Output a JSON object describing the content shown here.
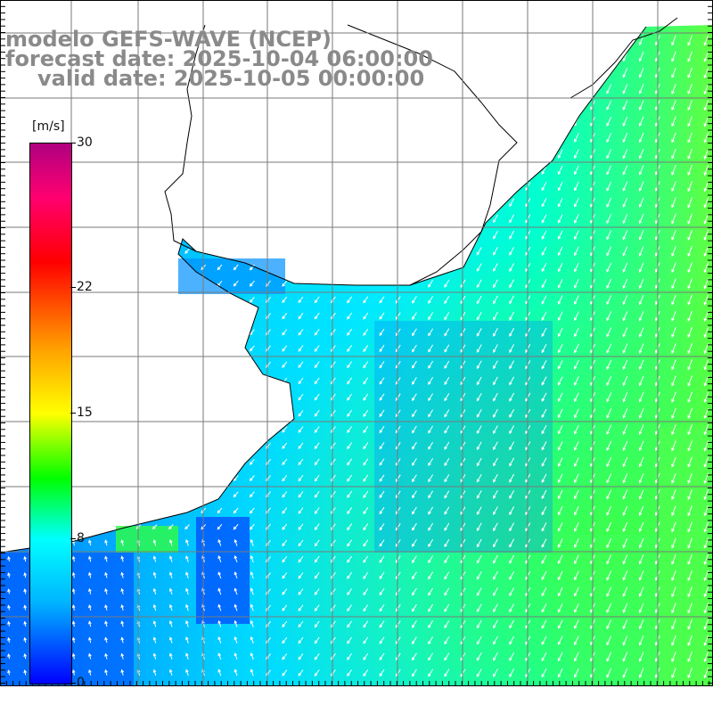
{
  "title": {
    "line1": "modelo GEFS-WAVE (NCEP)",
    "line2": "forecast date: 2025-10-04 06:00:00",
    "line3": "valid date: 2025-10-05 00:00:00"
  },
  "colorbar": {
    "unit": "[m/s]",
    "min": 0,
    "max": 30,
    "ticks": [
      "30",
      "22",
      "15",
      "8",
      "0"
    ],
    "tick_values": [
      30,
      22,
      15,
      8,
      0
    ]
  },
  "colors": {
    "ocean_low": "#0030ff",
    "ocean_mid": "#00e0ff",
    "ocean_high": "#40ff40",
    "land": "#ffffff",
    "grid": "#808080",
    "coast": "#000000"
  }
}
